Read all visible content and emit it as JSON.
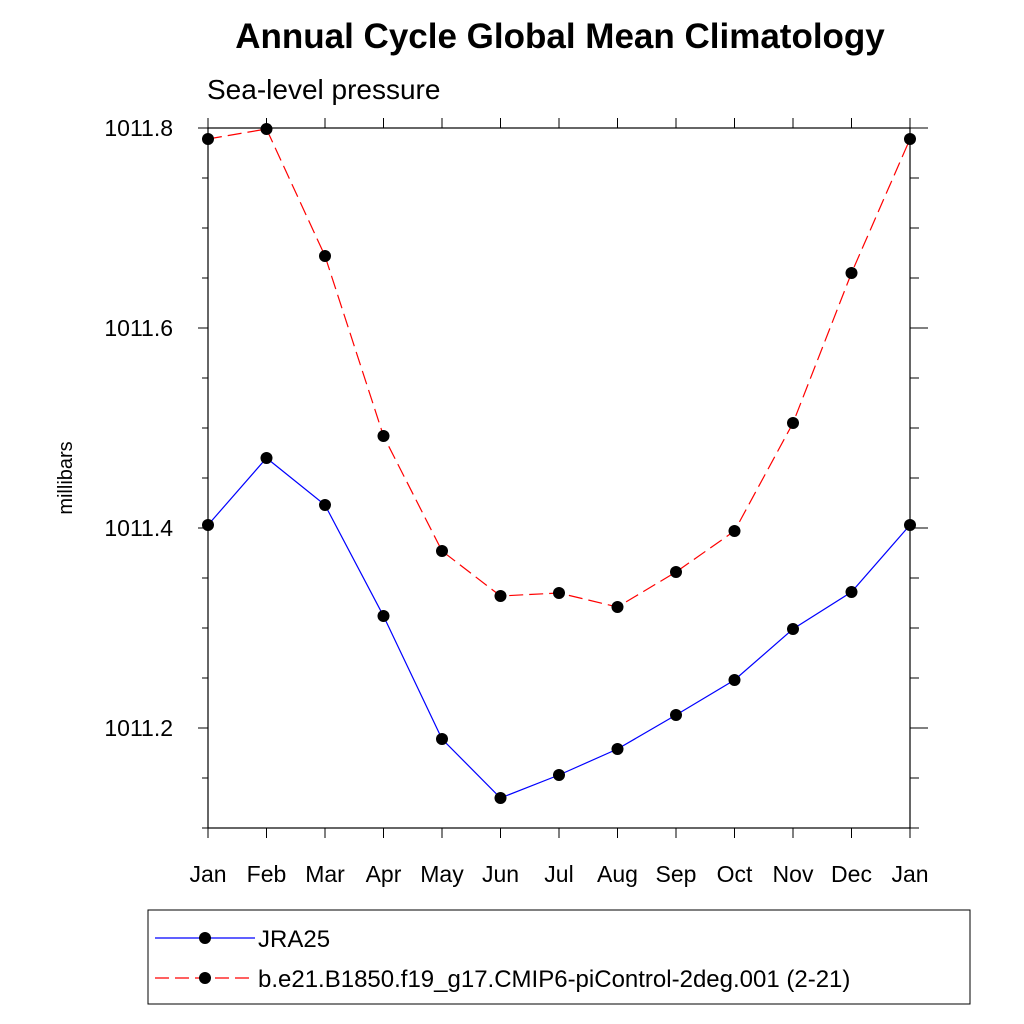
{
  "chart_data": {
    "type": "line",
    "title": "Annual Cycle Global Mean Climatology",
    "subtitle": "Sea-level pressure",
    "xlabel": "",
    "ylabel": "millibars",
    "categories": [
      "Jan",
      "Feb",
      "Mar",
      "Apr",
      "May",
      "Jun",
      "Jul",
      "Aug",
      "Sep",
      "Oct",
      "Nov",
      "Dec",
      "Jan"
    ],
    "ylim": [
      1011.1,
      1011.8
    ],
    "yticks": [
      "1011.2",
      "1011.4",
      "1011.6",
      "1011.8"
    ],
    "ytick_values": [
      1011.2,
      1011.4,
      1011.6,
      1011.8
    ],
    "legend_position": "bottom",
    "series": [
      {
        "name": "JRA25",
        "color": "#0000ff",
        "dashed": false,
        "values": [
          1011.403,
          1011.47,
          1011.423,
          1011.312,
          1011.189,
          1011.13,
          1011.153,
          1011.179,
          1011.213,
          1011.248,
          1011.299,
          1011.336,
          1011.403
        ]
      },
      {
        "name": "b.e21.B1850.f19_g17.CMIP6-piControl-2deg.001 (2-21)",
        "color": "#ff0000",
        "dashed": true,
        "values": [
          1011.789,
          1011.799,
          1011.672,
          1011.492,
          1011.377,
          1011.332,
          1011.335,
          1011.321,
          1011.356,
          1011.397,
          1011.505,
          1011.655,
          1011.789
        ]
      }
    ]
  }
}
